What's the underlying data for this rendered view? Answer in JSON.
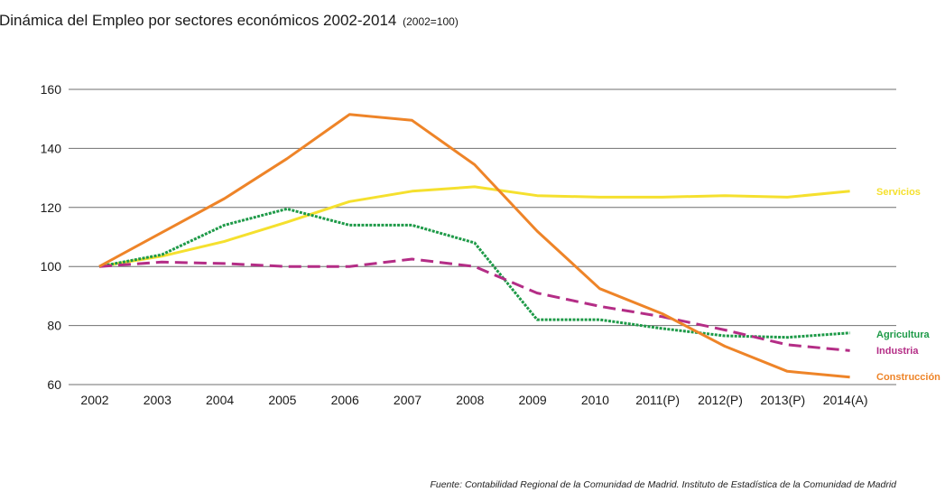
{
  "chart_data": {
    "type": "line",
    "title": "Dinámica del Empleo por sectores económicos 2002-2014",
    "subtitle": "(2002=100)",
    "categories": [
      "2002",
      "2003",
      "2004",
      "2005",
      "2006",
      "2007",
      "2008",
      "2009",
      "2010",
      "2011(P)",
      "2012(P)",
      "2013(P)",
      "2014(A)"
    ],
    "yticks": [
      60,
      80,
      100,
      120,
      140,
      160
    ],
    "ylim": [
      60,
      160
    ],
    "grid": true,
    "series": [
      {
        "name": "Servicios",
        "color": "#f5e02e",
        "dash": "solid",
        "values": [
          100,
          103.5,
          108.5,
          115,
          122,
          125.5,
          127,
          124,
          123.5,
          123.5,
          124,
          123.5,
          125.5
        ]
      },
      {
        "name": "Agricultura",
        "color": "#1e9a48",
        "dash": "dotted",
        "values": [
          100,
          104,
          114,
          119.5,
          114,
          114,
          108,
          82,
          82,
          79,
          76.5,
          76,
          77.5
        ]
      },
      {
        "name": "Industria",
        "color": "#b42d86",
        "dash": "dashed",
        "values": [
          100,
          101.5,
          101,
          100,
          100,
          102.5,
          100,
          91,
          86.5,
          83,
          78.5,
          73.5,
          71.5
        ]
      },
      {
        "name": "Construcción",
        "color": "#ee8428",
        "dash": "solid",
        "values": [
          100,
          111.5,
          123,
          136.5,
          151.5,
          149.5,
          134.5,
          112,
          92.5,
          84,
          73,
          64.5,
          62.5
        ]
      }
    ],
    "source": "Fuente: Contabilidad Regional de la Comunidad de Madrid. Instituto de Estadística de la Comunidad de Madrid"
  }
}
